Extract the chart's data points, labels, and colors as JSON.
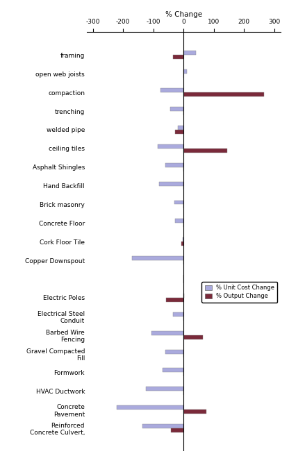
{
  "categories": [
    "framing",
    "open web joists",
    "compaction",
    "trenching",
    "welded pipe",
    "ceiling tiles",
    "Asphalt Shingles",
    "Hand Backfill",
    "Brick masonry",
    "Concrete Floor",
    "Cork Floor Tile",
    "Copper Downspout",
    "",
    "Electric Poles",
    "Electrical Steel\nConduit",
    "Barbed Wire\nFencing",
    "Gravel Compacted\nFill",
    "Formwork",
    "HVAC Ductwork",
    "Concrete\nPavement",
    "Reinforced\nConcrete Culvert,"
  ],
  "unit_cost_change": [
    40,
    12,
    -75,
    -45,
    -18,
    -85,
    -60,
    -80,
    -30,
    -28,
    -3,
    -170,
    0,
    3,
    -35,
    -105,
    -60,
    -70,
    -125,
    -220,
    -135
  ],
  "output_change": [
    -35,
    0,
    265,
    0,
    -28,
    145,
    0,
    0,
    0,
    0,
    -8,
    0,
    0,
    -58,
    0,
    65,
    0,
    0,
    0,
    75,
    -42
  ],
  "bar_color_unit": "#aaaadd",
  "bar_color_output": "#7a2a3a",
  "xlim": [
    -320,
    320
  ],
  "xticks": [
    -300,
    -200,
    -100,
    0,
    100,
    200,
    300
  ],
  "xlabel": "% Change",
  "legend_unit": "% Unit Cost Change",
  "legend_output": "% Output Change",
  "bar_height": 0.22,
  "fig_width": 4.16,
  "fig_height": 6.57,
  "dpi": 100
}
